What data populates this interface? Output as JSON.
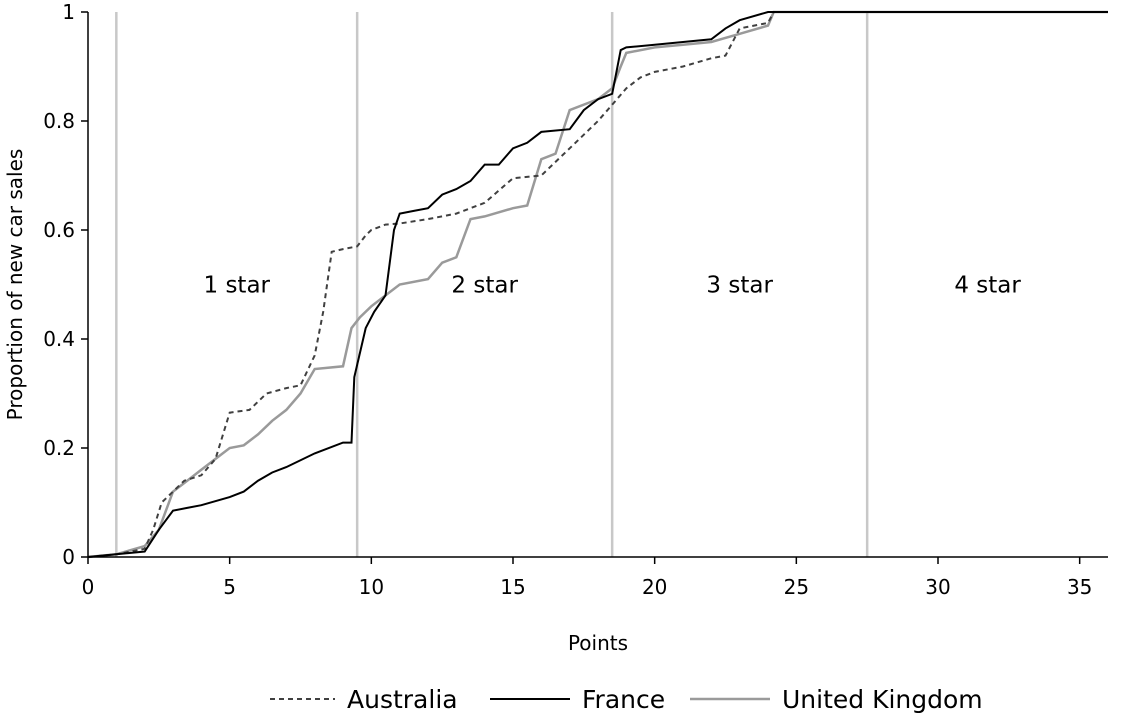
{
  "chart_data": {
    "type": "line",
    "xlabel": "Points",
    "ylabel": "Proportion of new car sales",
    "xlim": [
      0,
      36
    ],
    "ylim": [
      0,
      1
    ],
    "x_ticks": [
      "0",
      "5",
      "10",
      "15",
      "20",
      "25",
      "30",
      "35"
    ],
    "y_ticks": [
      "0",
      "0.2",
      "0.4",
      "0.6",
      "0.8",
      "1"
    ],
    "grid": false,
    "star_boundaries": [
      1,
      9.5,
      18.5,
      27.5
    ],
    "star_zones": [
      {
        "label": "1 star",
        "x": 5.25
      },
      {
        "label": "2 star",
        "x": 14
      },
      {
        "label": "3 star",
        "x": 23
      },
      {
        "label": "4 star",
        "x": 31.75
      }
    ],
    "legend_position": "bottom-center",
    "colors": {
      "Australia": "#404040",
      "France": "#000000",
      "United Kingdom": "#9a9a9a",
      "boundary": "#c8c8c8"
    },
    "series": [
      {
        "name": "Australia",
        "style": "dashed",
        "points": [
          [
            0,
            0
          ],
          [
            1,
            0.005
          ],
          [
            2,
            0.015
          ],
          [
            2.3,
            0.05
          ],
          [
            2.6,
            0.1
          ],
          [
            3,
            0.12
          ],
          [
            3.4,
            0.14
          ],
          [
            4,
            0.15
          ],
          [
            4.5,
            0.18
          ],
          [
            5,
            0.265
          ],
          [
            5.7,
            0.27
          ],
          [
            6.3,
            0.3
          ],
          [
            7,
            0.31
          ],
          [
            7.5,
            0.315
          ],
          [
            8,
            0.37
          ],
          [
            8.3,
            0.45
          ],
          [
            8.6,
            0.56
          ],
          [
            9,
            0.565
          ],
          [
            9.5,
            0.57
          ],
          [
            9.8,
            0.59
          ],
          [
            10,
            0.6
          ],
          [
            10.5,
            0.61
          ],
          [
            11,
            0.612
          ],
          [
            12,
            0.62
          ],
          [
            13,
            0.63
          ],
          [
            14,
            0.65
          ],
          [
            15,
            0.695
          ],
          [
            16,
            0.7
          ],
          [
            17,
            0.75
          ],
          [
            18,
            0.8
          ],
          [
            18.5,
            0.83
          ],
          [
            19,
            0.86
          ],
          [
            19.5,
            0.88
          ],
          [
            20,
            0.89
          ],
          [
            21,
            0.9
          ],
          [
            22,
            0.915
          ],
          [
            22.5,
            0.92
          ],
          [
            23,
            0.97
          ],
          [
            24,
            0.98
          ],
          [
            24.2,
            1
          ],
          [
            36,
            1
          ]
        ]
      },
      {
        "name": "France",
        "style": "solid",
        "points": [
          [
            0,
            0
          ],
          [
            1,
            0.005
          ],
          [
            2,
            0.01
          ],
          [
            2.5,
            0.05
          ],
          [
            3,
            0.085
          ],
          [
            3.5,
            0.09
          ],
          [
            4,
            0.095
          ],
          [
            5,
            0.11
          ],
          [
            5.5,
            0.12
          ],
          [
            6,
            0.14
          ],
          [
            6.5,
            0.155
          ],
          [
            7,
            0.165
          ],
          [
            8,
            0.19
          ],
          [
            9,
            0.21
          ],
          [
            9.3,
            0.21
          ],
          [
            9.4,
            0.33
          ],
          [
            9.8,
            0.42
          ],
          [
            10.1,
            0.45
          ],
          [
            10.5,
            0.48
          ],
          [
            10.8,
            0.6
          ],
          [
            11,
            0.63
          ],
          [
            11.5,
            0.635
          ],
          [
            12,
            0.64
          ],
          [
            12.5,
            0.665
          ],
          [
            13,
            0.675
          ],
          [
            13.5,
            0.69
          ],
          [
            14,
            0.72
          ],
          [
            14.5,
            0.72
          ],
          [
            15,
            0.75
          ],
          [
            15.5,
            0.76
          ],
          [
            16,
            0.78
          ],
          [
            17,
            0.785
          ],
          [
            17.5,
            0.82
          ],
          [
            18,
            0.84
          ],
          [
            18.5,
            0.85
          ],
          [
            18.8,
            0.93
          ],
          [
            19,
            0.935
          ],
          [
            20,
            0.94
          ],
          [
            21,
            0.945
          ],
          [
            22,
            0.95
          ],
          [
            22.5,
            0.97
          ],
          [
            23,
            0.985
          ],
          [
            24,
            1
          ],
          [
            36,
            1
          ]
        ]
      },
      {
        "name": "United Kingdom",
        "style": "solid",
        "points": [
          [
            0,
            0
          ],
          [
            1,
            0.005
          ],
          [
            2,
            0.02
          ],
          [
            2.5,
            0.05
          ],
          [
            3,
            0.12
          ],
          [
            3.5,
            0.14
          ],
          [
            4,
            0.16
          ],
          [
            4.5,
            0.18
          ],
          [
            5,
            0.2
          ],
          [
            5.5,
            0.205
          ],
          [
            6,
            0.225
          ],
          [
            6.5,
            0.25
          ],
          [
            7,
            0.27
          ],
          [
            7.5,
            0.3
          ],
          [
            8,
            0.345
          ],
          [
            9,
            0.35
          ],
          [
            9.3,
            0.42
          ],
          [
            9.6,
            0.44
          ],
          [
            10,
            0.46
          ],
          [
            10.5,
            0.48
          ],
          [
            11,
            0.5
          ],
          [
            12,
            0.51
          ],
          [
            12.5,
            0.54
          ],
          [
            13,
            0.55
          ],
          [
            13.5,
            0.62
          ],
          [
            14,
            0.625
          ],
          [
            15,
            0.64
          ],
          [
            15.5,
            0.645
          ],
          [
            16,
            0.73
          ],
          [
            16.5,
            0.74
          ],
          [
            17,
            0.82
          ],
          [
            18,
            0.84
          ],
          [
            18.5,
            0.86
          ],
          [
            18.8,
            0.9
          ],
          [
            19,
            0.925
          ],
          [
            20,
            0.935
          ],
          [
            21,
            0.94
          ],
          [
            22,
            0.945
          ],
          [
            23,
            0.96
          ],
          [
            24,
            0.975
          ],
          [
            24.2,
            1
          ],
          [
            36,
            1
          ]
        ]
      }
    ]
  }
}
